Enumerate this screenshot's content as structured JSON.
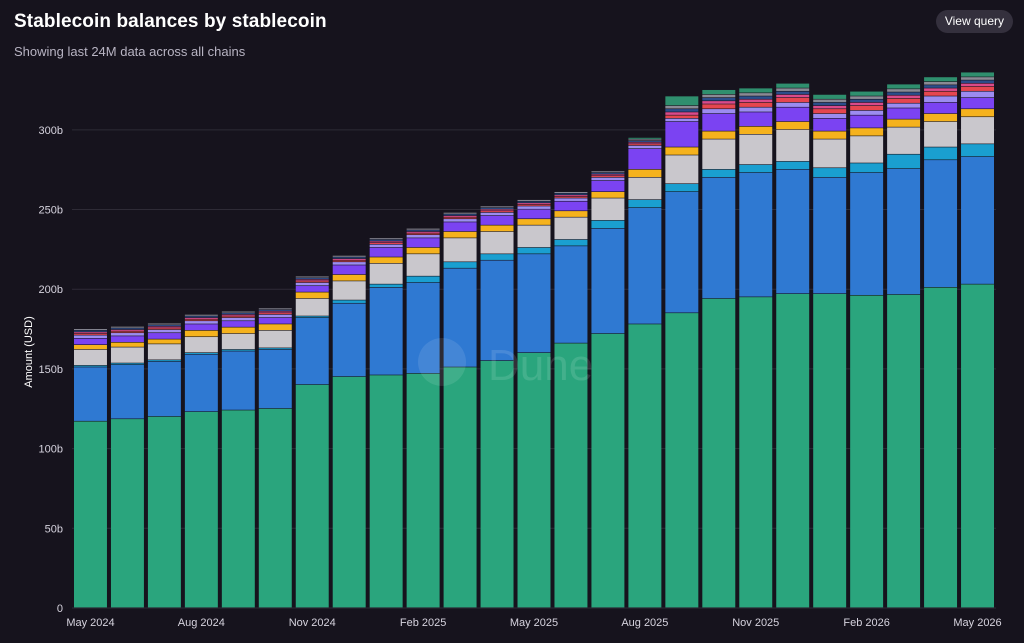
{
  "header": {
    "title": "Stablecoin balances by stablecoin",
    "subtitle": "Showing last 24M data across all chains",
    "view_query_label": "View query"
  },
  "watermark": "Dune",
  "colors": {
    "background": "#16131d",
    "grid": "#2e2b36",
    "button_bg": "#34303d"
  },
  "chart_data": {
    "type": "bar",
    "stacked": true,
    "ylabel": "Amount (USD)",
    "ylim": [
      0,
      330000000000
    ],
    "yticks": [
      0,
      50000000000,
      100000000000,
      150000000000,
      200000000000,
      250000000000,
      300000000000
    ],
    "ytick_labels": [
      "0",
      "50b",
      "100b",
      "150b",
      "200b",
      "250b",
      "300b"
    ],
    "xtick_labels": [
      {
        "index": 0,
        "label": "May 2024"
      },
      {
        "index": 3,
        "label": "Aug 2024"
      },
      {
        "index": 6,
        "label": "Nov 2024"
      },
      {
        "index": 9,
        "label": "Feb 2025"
      },
      {
        "index": 12,
        "label": "May 2025"
      },
      {
        "index": 15,
        "label": "Aug 2025"
      },
      {
        "index": 18,
        "label": "Nov 2025"
      },
      {
        "index": 21,
        "label": "Feb 2026"
      },
      {
        "index": 24,
        "label": "May 2026"
      }
    ],
    "categories": [
      "2024-05",
      "2024-06",
      "2024-07",
      "2024-08",
      "2024-09",
      "2024-10",
      "2024-11",
      "2024-12",
      "2025-01",
      "2025-02",
      "2025-03",
      "2025-04",
      "2025-05",
      "2025-06",
      "2025-07",
      "2025-08",
      "2025-09",
      "2025-10",
      "2025-11",
      "2025-12",
      "2026-01",
      "2026-02",
      "2026-03",
      "2026-04",
      "2026-05"
    ],
    "grid": true,
    "legend": "none",
    "series": [
      {
        "color": "#2aa57d",
        "values": [
          117,
          118.5,
          120,
          123,
          124,
          125,
          140,
          145,
          146,
          147,
          151,
          155,
          160,
          166,
          172,
          178,
          185,
          194,
          195,
          197,
          197,
          196,
          196.5,
          201,
          203
        ]
      },
      {
        "color": "#2f79d2",
        "values": [
          34,
          34,
          34.5,
          36,
          37,
          37,
          42,
          46,
          55,
          57,
          62,
          63,
          62,
          61,
          66,
          73,
          76,
          76,
          78,
          78,
          73,
          77,
          79,
          80,
          80
        ]
      },
      {
        "color": "#1a9fd0",
        "values": [
          1,
          1,
          1,
          1,
          1,
          1,
          1,
          2,
          2,
          4,
          4,
          4,
          4,
          4,
          5,
          5,
          5,
          5,
          5,
          5,
          6,
          6,
          9,
          8,
          8
        ]
      },
      {
        "color": "#c9c7cc",
        "values": [
          10,
          10,
          10,
          10,
          10,
          11,
          11,
          12,
          13,
          14,
          15,
          14,
          14,
          14,
          14,
          14,
          18,
          19,
          19,
          20,
          18,
          17,
          17,
          16,
          17
        ]
      },
      {
        "color": "#f5b21d",
        "values": [
          3,
          3,
          3,
          4,
          4,
          4,
          4,
          4,
          4,
          4,
          4,
          4,
          4,
          4,
          4,
          5,
          5,
          5,
          5,
          5,
          5,
          5,
          5,
          5,
          5
        ]
      },
      {
        "color": "#7b43f2",
        "values": [
          4,
          4,
          4,
          4,
          4,
          4,
          4,
          6,
          6,
          6,
          6,
          6,
          6,
          6,
          7,
          13,
          16,
          11,
          9,
          9,
          8,
          8,
          7,
          7,
          7
        ]
      },
      {
        "color": "#9c8cf0",
        "values": [
          2,
          2,
          2,
          2,
          2,
          2,
          2,
          2,
          2,
          2,
          2,
          2,
          2,
          2,
          2,
          2,
          2,
          3,
          3,
          3,
          3,
          3,
          3,
          4,
          4
        ]
      },
      {
        "color": "#e5464f",
        "values": [
          1,
          1,
          1,
          1,
          1,
          1,
          1,
          1,
          1,
          1,
          1,
          1,
          1,
          1,
          1,
          1,
          2,
          3,
          3,
          3,
          3,
          3,
          3,
          3,
          3
        ]
      },
      {
        "color": "#d94a8a",
        "values": [
          1,
          1,
          1,
          1,
          1,
          1,
          1,
          1,
          1,
          1,
          1,
          1,
          1,
          1,
          1,
          1,
          2,
          2,
          2,
          2,
          2,
          2,
          2,
          2,
          2
        ]
      },
      {
        "color": "#2b4d8a",
        "values": [
          1,
          1,
          1,
          1,
          1,
          1,
          1,
          1,
          1,
          1,
          1,
          1,
          1,
          1,
          1,
          1,
          2,
          2,
          2,
          2,
          2,
          2,
          2,
          2,
          2
        ]
      },
      {
        "color": "#8a8a95",
        "values": [
          1,
          1,
          1,
          1,
          1,
          1,
          1,
          1,
          1,
          1,
          1,
          1,
          1,
          1,
          1,
          1,
          2,
          2,
          2,
          2,
          2,
          2,
          2,
          2,
          2
        ]
      },
      {
        "color": "#2f8f6e",
        "values": [
          0,
          0,
          0,
          0,
          0,
          0,
          0,
          0,
          0,
          0,
          0,
          0,
          0,
          0,
          0,
          1,
          6,
          3,
          3,
          3,
          3,
          3,
          3,
          3,
          3
        ]
      }
    ]
  }
}
